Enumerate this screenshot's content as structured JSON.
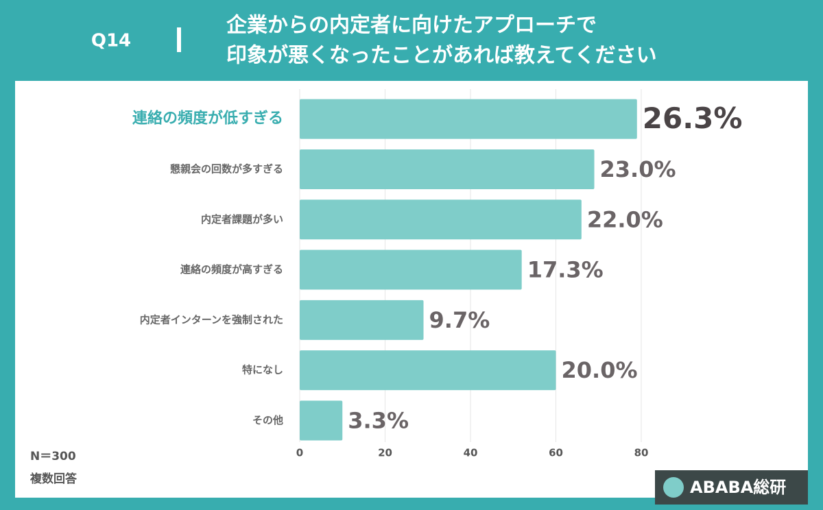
{
  "question": "Q14",
  "title_lines": [
    "企業からの内定者に向けたアプローチで",
    "印象が悪くなったことがあれば教えてください"
  ],
  "notes": [
    "N＝300",
    "複数回答"
  ],
  "brand": "ABABA総研",
  "chart_data": {
    "type": "hbar",
    "categories": [
      "連絡の頻度が低すぎる",
      "懇親会の回数が多すぎる",
      "内定者課題が多い",
      "連絡の頻度が高すぎる",
      "内定者インターンを強制された",
      "特になし",
      "その他"
    ],
    "values": [
      79,
      69,
      66,
      52,
      29,
      60,
      10
    ],
    "value_labels": [
      "26.3%",
      "23.0%",
      "22.0%",
      "17.3%",
      "9.7%",
      "20.0%",
      "3.3%"
    ],
    "color": "#7fcdc9",
    "xlim": [
      0,
      80
    ],
    "xticks": [
      0,
      20,
      40,
      60,
      80
    ],
    "grid": true
  }
}
